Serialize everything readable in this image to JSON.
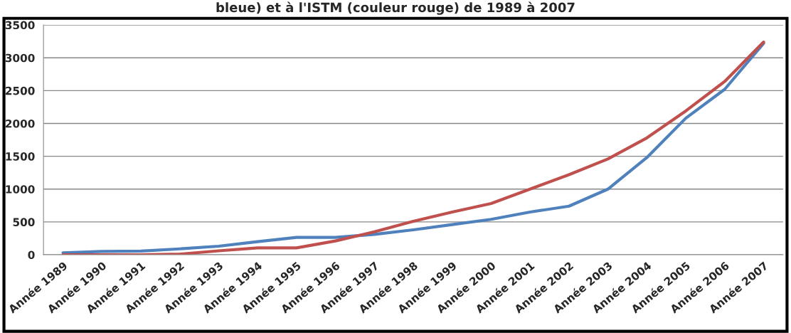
{
  "chart_data": {
    "type": "line",
    "title": "bleue) et à l'ISTM (couleur rouge) de 1989 à 2007",
    "categories": [
      "Année 1989",
      "Année 1990",
      "Année 1991",
      "Année 1992",
      "Année 1993",
      "Année 1994",
      "Année 1995",
      "Année 1996",
      "Année 1997",
      "Année 1998",
      "Année 1999",
      "Année 2000",
      "Année 2001",
      "Année 2002",
      "Année 2003",
      "Année 2004",
      "Année 2005",
      "Année 2006",
      "Année 2007"
    ],
    "series": [
      {
        "color": "#4f81bd",
        "values": [
          30,
          50,
          55,
          90,
          130,
          200,
          265,
          265,
          310,
          380,
          460,
          540,
          650,
          740,
          1000,
          1480,
          2080,
          2520,
          3220
        ]
      },
      {
        "color": "#c0504d",
        "values": [
          0,
          0,
          0,
          10,
          60,
          105,
          105,
          210,
          350,
          510,
          650,
          780,
          1000,
          1220,
          1460,
          1780,
          2190,
          2640,
          3240
        ]
      }
    ],
    "ylim": [
      0,
      3500
    ],
    "yticks": [
      0,
      500,
      1000,
      1500,
      2000,
      2500,
      3000,
      3500
    ],
    "grid": "y",
    "legend": false,
    "marker": "none",
    "line_style": "solid"
  }
}
